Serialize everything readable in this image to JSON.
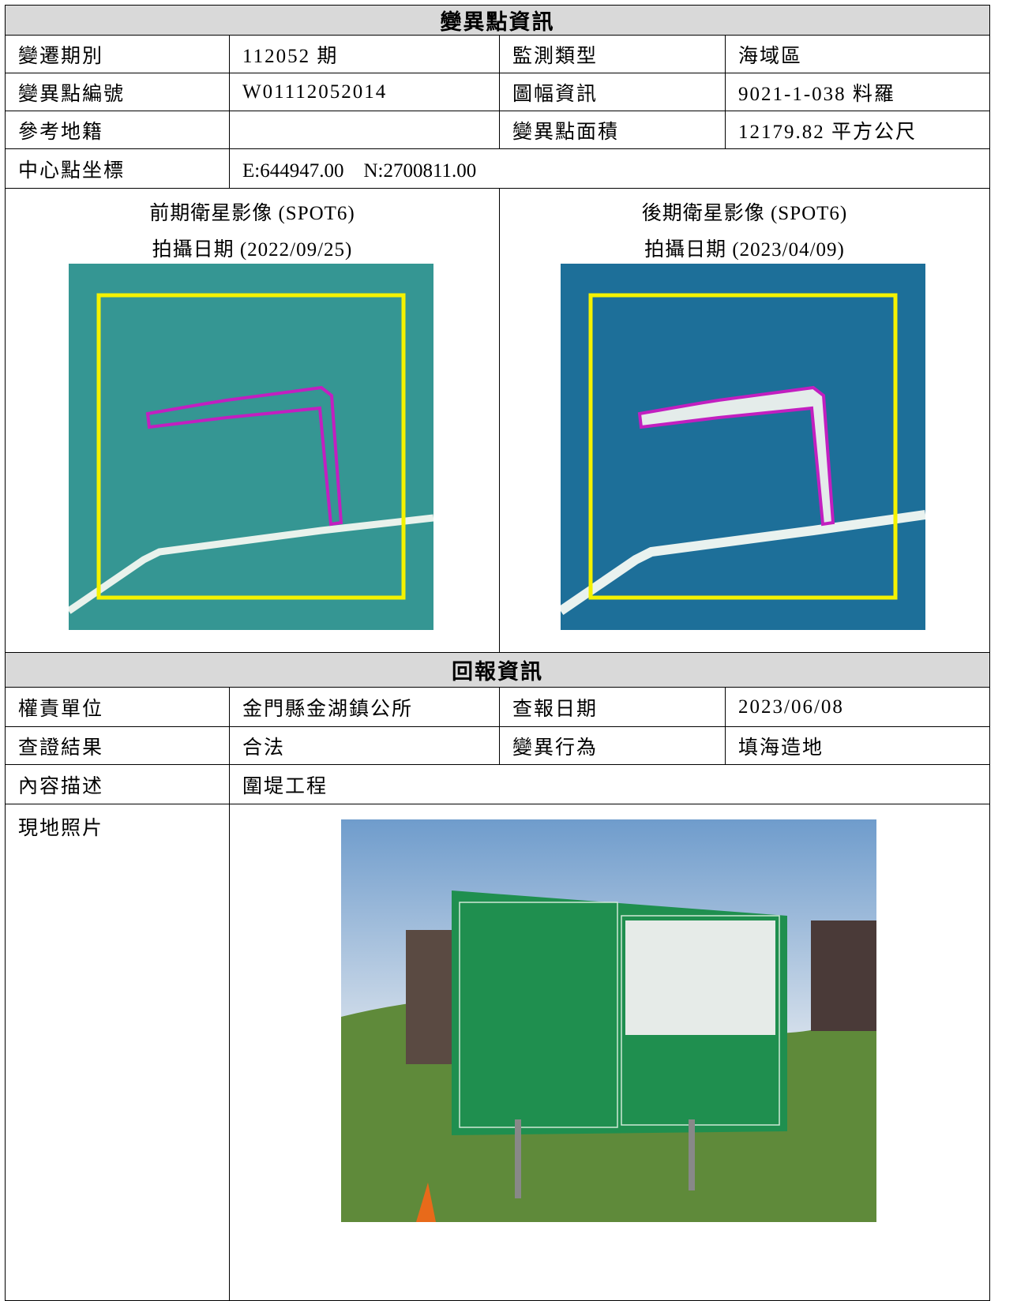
{
  "change_info": {
    "title": "變異點資訊",
    "period_label": "變遷期別",
    "period": "112052 期",
    "monitor_type_label": "監測類型",
    "monitor_type": "海域區",
    "point_id_label": "變異點編號",
    "point_id": "W01112052014",
    "map_sheet_label": "圖幅資訊",
    "map_sheet": "9021-1-038 料羅",
    "cadastre_label": "參考地籍",
    "area_label": "變異點面積",
    "area": "12179.82 平方公尺",
    "center_label": "中心點坐標",
    "center": "E:644947.00　N:2700811.00",
    "before": {
      "title": "前期衛星影像 (SPOT6)",
      "date": "拍攝日期 (2022/09/25)"
    },
    "after": {
      "title": "後期衛星影像 (SPOT6)",
      "date": "拍攝日期 (2023/04/09)"
    }
  },
  "report_info": {
    "title": "回報資訊",
    "unit_label": "權責單位",
    "unit": "金門縣金湖鎮公所",
    "report_date_label": "查報日期",
    "report_date": "2023/06/08",
    "result_label": "查證結果",
    "result": "合法",
    "behavior_label": "變異行為",
    "behavior": "填海造地",
    "description_label": "內容描述",
    "description": "圍堤工程",
    "photo_label": "現地照片"
  }
}
